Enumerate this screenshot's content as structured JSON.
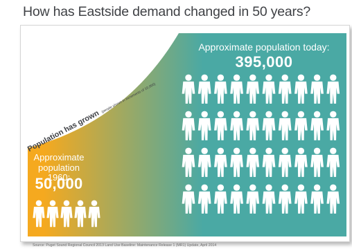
{
  "page": {
    "title": "How has Eastside demand changed in 50 years?",
    "source": "Source: Puget Sound Regional Council 2013 Land Use Baseline: Maintenance Release 1 (MR1) Update, April 2014"
  },
  "chart_data": {
    "type": "pictogram",
    "title": "How has Eastside demand changed in 50 years?",
    "axis_label": "Population has grown",
    "unit_note": "(people shown in increments of 10,000)",
    "unit_per_icon": 10000,
    "categories": [
      {
        "label_lines": [
          "Approximate",
          "population 1960:"
        ],
        "value": 50000,
        "value_label": "50,000",
        "icons": 5,
        "columns": 5,
        "color": "#f5a91f"
      },
      {
        "label_lines": [
          "Approximate population today:"
        ],
        "value": 395000,
        "value_label": "395,000",
        "icons": 40,
        "columns": 10,
        "color": "#4aa9a4"
      }
    ],
    "colors": {
      "1960": "#f5a91f",
      "today": "#4aa9a4",
      "icon": "#ffffff",
      "text": "#3f4145"
    }
  }
}
